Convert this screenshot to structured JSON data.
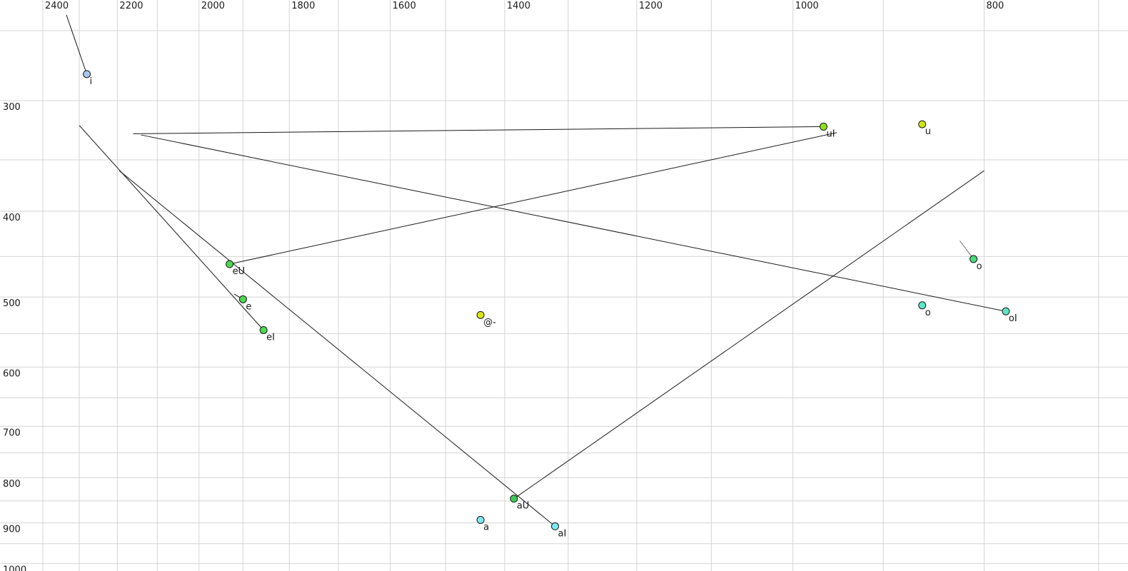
{
  "chart_data": {
    "type": "scatter",
    "title": "",
    "xlabel": "",
    "ylabel": "",
    "description_of_content": "Vowel formant plot: F2 (Hz) decreasing left-to-right on top axis, F1 (Hz) increasing downward on left axis, both log-scaled; dots mark vowel onsets, thin lines mark diphthong glide trajectories",
    "grid": true,
    "background_color": "#ffffff",
    "gridline_color": "#d4d4d4",
    "x_axis": {
      "scale": "log",
      "reversed": true,
      "tick_labels": [
        2400,
        2200,
        2000,
        1800,
        1600,
        1400,
        1200,
        1000,
        800
      ],
      "gridlines_hz": [
        2400,
        2300,
        2200,
        2100,
        2000,
        1900,
        1800,
        1700,
        1600,
        1500,
        1400,
        1300,
        1200,
        1100,
        1000,
        900,
        800,
        700
      ]
    },
    "y_axis": {
      "scale": "log",
      "tick_labels": [
        300,
        400,
        500,
        600,
        700,
        800,
        900,
        1000
      ],
      "gridlines_hz": [
        250,
        300,
        350,
        400,
        450,
        500,
        550,
        600,
        650,
        700,
        750,
        800,
        850,
        900,
        950,
        1000
      ]
    },
    "points": [
      {
        "label": "i",
        "f2": 2280,
        "f1": 280,
        "glide_to": {
          "f2": 2335,
          "f1": 240
        },
        "color": "#a9c5ee",
        "label_color": "#1a1a1a",
        "line_color": "#1a1a1a"
      },
      {
        "label": "u",
        "f2": 860,
        "f1": 319,
        "glide_to": null,
        "color": "#cde613",
        "label_color": "#1a1a1a",
        "line_color": "#1a1a1a"
      },
      {
        "label": "uI",
        "f2": 965,
        "f1": 321,
        "glide_to": {
          "f2": 2160,
          "f1": 327
        },
        "color": "#8ce31c",
        "label_color": "#1a1a1a",
        "line_color": "#1a1a1a"
      },
      {
        "label": "eU",
        "f2": 1930,
        "f1": 459,
        "glide_to": {
          "f2": 950,
          "f1": 326
        },
        "color": "#4cd94f",
        "label_color": "#1a1a1a",
        "line_color": "#1a1a1a"
      },
      {
        "label": "e",
        "f2": 1900,
        "f1": 503,
        "glide_to": {
          "f2": 1920,
          "f1": 496
        },
        "color": "#4cd94f",
        "label_color": "#1a1a1a",
        "line_color": "#1a1a1a"
      },
      {
        "label": "eI",
        "f2": 1855,
        "f1": 545,
        "glide_to": {
          "f2": 2300,
          "f1": 320
        },
        "color": "#4cd94f",
        "label_color": "#1a1a1a",
        "line_color": "#1a1a1a"
      },
      {
        "label": "@-",
        "f2": 1440,
        "f1": 524,
        "glide_to": null,
        "color": "#d9e610",
        "label_color": "#1a1a1a",
        "line_color": "#1a1a1a"
      },
      {
        "label": "o",
        "f2": 810,
        "f1": 453,
        "glide_to": {
          "f2": 823,
          "f1": 432
        },
        "color": "#46dc78",
        "label_color": "#8f8f8f",
        "line_color": "#6f6f6f"
      },
      {
        "label": "o",
        "f2": 860,
        "f1": 511,
        "glide_to": null,
        "color": "#5ee5c6",
        "label_color": "#1a1a1a",
        "line_color": "#1a1a1a"
      },
      {
        "label": "oI",
        "f2": 780,
        "f1": 519,
        "glide_to": {
          "f2": 2140,
          "f1": 328
        },
        "color": "#5ee5c6",
        "label_color": "#1a1a1a",
        "line_color": "#1a1a1a"
      },
      {
        "label": "aU",
        "f2": 1385,
        "f1": 845,
        "glide_to": {
          "f2": 800,
          "f1": 360
        },
        "color": "#3ecb52",
        "label_color": "#1a1a1a",
        "line_color": "#1a1a1a"
      },
      {
        "label": "a",
        "f2": 1440,
        "f1": 893,
        "glide_to": null,
        "color": "#7fe8f0",
        "label_color": "#1a1a1a",
        "line_color": "#1a1a1a"
      },
      {
        "label": "aI",
        "f2": 1320,
        "f1": 908,
        "glide_to": {
          "f2": 2195,
          "f1": 360
        },
        "color": "#7fe8f0",
        "label_color": "#1a1a1a",
        "line_color": "#1a1a1a"
      }
    ]
  }
}
